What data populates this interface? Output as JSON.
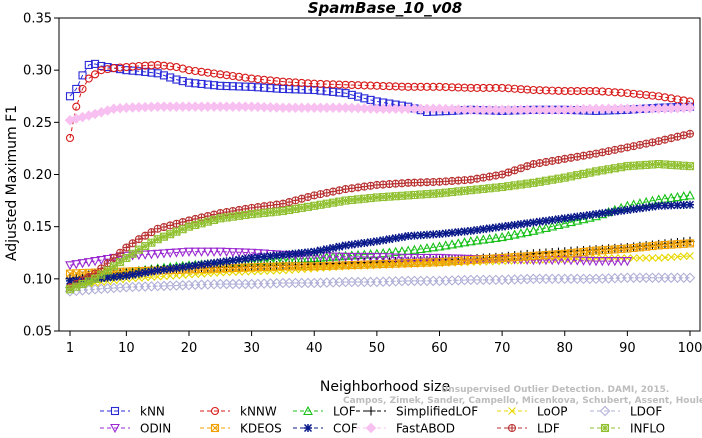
{
  "chart_data": {
    "type": "line",
    "title": "SpamBase_10_v08",
    "xlabel": "Neighborhood size",
    "ylabel": "Adjusted Maximum F1",
    "xlim": [
      1,
      100
    ],
    "ylim": [
      0.05,
      0.35
    ],
    "xticks": [
      "1",
      "10",
      "20",
      "30",
      "40",
      "50",
      "60",
      "70",
      "80",
      "90",
      "100"
    ],
    "yticks": [
      "0.05",
      "0.10",
      "0.15",
      "0.20",
      "0.25",
      "0.30",
      "0.35"
    ],
    "grid": false,
    "legend_placement": "bottom",
    "series": [
      {
        "name": "kNN",
        "color": "#2a2ad8",
        "marker": "square",
        "dash": "4,3",
        "points": [
          [
            1,
            0.275
          ],
          [
            2,
            0.282
          ],
          [
            3,
            0.295
          ],
          [
            4,
            0.305
          ],
          [
            5,
            0.306
          ],
          [
            6,
            0.304
          ],
          [
            8,
            0.302
          ],
          [
            10,
            0.3
          ],
          [
            12,
            0.299
          ],
          [
            15,
            0.297
          ],
          [
            18,
            0.291
          ],
          [
            20,
            0.288
          ],
          [
            25,
            0.285
          ],
          [
            30,
            0.284
          ],
          [
            35,
            0.282
          ],
          [
            40,
            0.281
          ],
          [
            45,
            0.278
          ],
          [
            48,
            0.273
          ],
          [
            50,
            0.27
          ],
          [
            55,
            0.265
          ],
          [
            58,
            0.26
          ],
          [
            62,
            0.261
          ],
          [
            65,
            0.262
          ],
          [
            70,
            0.261
          ],
          [
            75,
            0.262
          ],
          [
            80,
            0.262
          ],
          [
            85,
            0.261
          ],
          [
            90,
            0.262
          ],
          [
            95,
            0.264
          ],
          [
            100,
            0.265
          ]
        ]
      },
      {
        "name": "kNNW",
        "color": "#d81a1a",
        "marker": "circle",
        "dash": "4,3",
        "points": [
          [
            1,
            0.235
          ],
          [
            2,
            0.265
          ],
          [
            3,
            0.282
          ],
          [
            4,
            0.292
          ],
          [
            5,
            0.296
          ],
          [
            6,
            0.3
          ],
          [
            8,
            0.302
          ],
          [
            10,
            0.303
          ],
          [
            12,
            0.304
          ],
          [
            15,
            0.305
          ],
          [
            18,
            0.303
          ],
          [
            20,
            0.3
          ],
          [
            25,
            0.296
          ],
          [
            30,
            0.292
          ],
          [
            35,
            0.289
          ],
          [
            40,
            0.287
          ],
          [
            45,
            0.286
          ],
          [
            50,
            0.285
          ],
          [
            55,
            0.284
          ],
          [
            60,
            0.284
          ],
          [
            65,
            0.283
          ],
          [
            70,
            0.283
          ],
          [
            75,
            0.281
          ],
          [
            80,
            0.28
          ],
          [
            85,
            0.28
          ],
          [
            90,
            0.278
          ],
          [
            95,
            0.275
          ],
          [
            100,
            0.27
          ]
        ]
      },
      {
        "name": "LOF",
        "color": "#18c018",
        "marker": "triangle-up",
        "dash": "4,3",
        "points": [
          [
            1,
            0.095
          ],
          [
            5,
            0.1
          ],
          [
            10,
            0.106
          ],
          [
            15,
            0.11
          ],
          [
            20,
            0.113
          ],
          [
            25,
            0.115
          ],
          [
            30,
            0.117
          ],
          [
            35,
            0.118
          ],
          [
            40,
            0.12
          ],
          [
            45,
            0.122
          ],
          [
            50,
            0.124
          ],
          [
            55,
            0.127
          ],
          [
            60,
            0.131
          ],
          [
            65,
            0.136
          ],
          [
            70,
            0.14
          ],
          [
            75,
            0.146
          ],
          [
            80,
            0.153
          ],
          [
            85,
            0.16
          ],
          [
            90,
            0.17
          ],
          [
            95,
            0.176
          ],
          [
            100,
            0.18
          ]
        ]
      },
      {
        "name": "SimplifiedLOF",
        "color": "#000000",
        "marker": "plus",
        "dash": "4,3",
        "points": [
          [
            1,
            0.1
          ],
          [
            5,
            0.105
          ],
          [
            10,
            0.106
          ],
          [
            15,
            0.109
          ],
          [
            20,
            0.11
          ],
          [
            25,
            0.111
          ],
          [
            30,
            0.112
          ],
          [
            35,
            0.113
          ],
          [
            40,
            0.114
          ],
          [
            45,
            0.115
          ],
          [
            50,
            0.116
          ],
          [
            55,
            0.117
          ],
          [
            60,
            0.118
          ],
          [
            65,
            0.119
          ],
          [
            70,
            0.121
          ],
          [
            75,
            0.124
          ],
          [
            80,
            0.126
          ],
          [
            85,
            0.128
          ],
          [
            90,
            0.13
          ],
          [
            95,
            0.133
          ],
          [
            100,
            0.136
          ]
        ]
      },
      {
        "name": "LoOP",
        "color": "#e8d800",
        "marker": "x",
        "dash": "4,3",
        "points": [
          [
            1,
            0.092
          ],
          [
            5,
            0.096
          ],
          [
            10,
            0.1
          ],
          [
            15,
            0.102
          ],
          [
            20,
            0.104
          ],
          [
            25,
            0.106
          ],
          [
            30,
            0.107
          ],
          [
            35,
            0.108
          ],
          [
            40,
            0.11
          ],
          [
            45,
            0.112
          ],
          [
            50,
            0.113
          ],
          [
            55,
            0.114
          ],
          [
            60,
            0.115
          ],
          [
            65,
            0.116
          ],
          [
            70,
            0.117
          ],
          [
            75,
            0.118
          ],
          [
            80,
            0.119
          ],
          [
            85,
            0.12
          ],
          [
            90,
            0.12
          ],
          [
            95,
            0.12
          ],
          [
            100,
            0.122
          ]
        ]
      },
      {
        "name": "LDOF",
        "color": "#b0b0d8",
        "marker": "diamond",
        "dash": "4,3",
        "points": [
          [
            1,
            0.088
          ],
          [
            5,
            0.09
          ],
          [
            10,
            0.092
          ],
          [
            15,
            0.093
          ],
          [
            20,
            0.094
          ],
          [
            25,
            0.095
          ],
          [
            30,
            0.095
          ],
          [
            35,
            0.096
          ],
          [
            40,
            0.096
          ],
          [
            45,
            0.097
          ],
          [
            50,
            0.097
          ],
          [
            55,
            0.098
          ],
          [
            60,
            0.098
          ],
          [
            65,
            0.099
          ],
          [
            70,
            0.099
          ],
          [
            75,
            0.1
          ],
          [
            80,
            0.1
          ],
          [
            85,
            0.1
          ],
          [
            90,
            0.101
          ],
          [
            95,
            0.101
          ],
          [
            100,
            0.101
          ]
        ]
      },
      {
        "name": "ODIN",
        "color": "#9a2ad0",
        "marker": "triangle-down",
        "dash": "4,3",
        "points": [
          [
            1,
            0.113
          ],
          [
            3,
            0.115
          ],
          [
            5,
            0.117
          ],
          [
            8,
            0.12
          ],
          [
            10,
            0.122
          ],
          [
            15,
            0.124
          ],
          [
            20,
            0.126
          ],
          [
            25,
            0.126
          ],
          [
            30,
            0.125
          ],
          [
            35,
            0.123
          ],
          [
            40,
            0.122
          ],
          [
            45,
            0.121
          ],
          [
            50,
            0.121
          ],
          [
            55,
            0.12
          ],
          [
            60,
            0.12
          ],
          [
            65,
            0.119
          ],
          [
            70,
            0.119
          ],
          [
            75,
            0.118
          ],
          [
            80,
            0.118
          ],
          [
            85,
            0.117
          ],
          [
            90,
            0.117
          ]
        ]
      },
      {
        "name": "KDEOS",
        "color": "#f0a000",
        "marker": "square-x",
        "dash": "4,3",
        "points": [
          [
            1,
            0.105
          ],
          [
            5,
            0.106
          ],
          [
            10,
            0.107
          ],
          [
            15,
            0.108
          ],
          [
            20,
            0.109
          ],
          [
            25,
            0.11
          ],
          [
            30,
            0.111
          ],
          [
            35,
            0.112
          ],
          [
            40,
            0.112
          ],
          [
            45,
            0.113
          ],
          [
            50,
            0.114
          ],
          [
            55,
            0.115
          ],
          [
            60,
            0.116
          ],
          [
            65,
            0.118
          ],
          [
            70,
            0.12
          ],
          [
            75,
            0.122
          ],
          [
            80,
            0.124
          ],
          [
            85,
            0.127
          ],
          [
            90,
            0.129
          ],
          [
            95,
            0.132
          ],
          [
            100,
            0.134
          ]
        ]
      },
      {
        "name": "COF",
        "color": "#0a1a8a",
        "marker": "asterisk",
        "dash": "4,3",
        "points": [
          [
            1,
            0.098
          ],
          [
            5,
            0.1
          ],
          [
            10,
            0.103
          ],
          [
            15,
            0.108
          ],
          [
            20,
            0.112
          ],
          [
            25,
            0.116
          ],
          [
            30,
            0.12
          ],
          [
            35,
            0.123
          ],
          [
            40,
            0.126
          ],
          [
            45,
            0.132
          ],
          [
            50,
            0.136
          ],
          [
            55,
            0.141
          ],
          [
            60,
            0.143
          ],
          [
            65,
            0.146
          ],
          [
            70,
            0.15
          ],
          [
            75,
            0.154
          ],
          [
            80,
            0.158
          ],
          [
            85,
            0.162
          ],
          [
            90,
            0.166
          ],
          [
            95,
            0.17
          ],
          [
            100,
            0.171
          ]
        ]
      },
      {
        "name": "FastABOD",
        "color": "#f8c0f0",
        "marker": "diamond-filled",
        "dash": "4,3",
        "points": [
          [
            1,
            0.252
          ],
          [
            3,
            0.255
          ],
          [
            5,
            0.258
          ],
          [
            8,
            0.263
          ],
          [
            10,
            0.264
          ],
          [
            15,
            0.265
          ],
          [
            20,
            0.265
          ],
          [
            25,
            0.265
          ],
          [
            30,
            0.265
          ],
          [
            35,
            0.264
          ],
          [
            40,
            0.264
          ],
          [
            45,
            0.264
          ],
          [
            50,
            0.263
          ],
          [
            55,
            0.263
          ],
          [
            60,
            0.263
          ],
          [
            65,
            0.262
          ],
          [
            70,
            0.262
          ],
          [
            75,
            0.262
          ],
          [
            80,
            0.262
          ],
          [
            85,
            0.263
          ],
          [
            90,
            0.263
          ],
          [
            95,
            0.263
          ],
          [
            100,
            0.264
          ]
        ]
      },
      {
        "name": "LDF",
        "color": "#b83030",
        "marker": "circle-plus",
        "dash": "4,3",
        "points": [
          [
            1,
            0.092
          ],
          [
            5,
            0.105
          ],
          [
            8,
            0.12
          ],
          [
            10,
            0.13
          ],
          [
            12,
            0.138
          ],
          [
            15,
            0.148
          ],
          [
            20,
            0.156
          ],
          [
            25,
            0.163
          ],
          [
            30,
            0.168
          ],
          [
            35,
            0.172
          ],
          [
            40,
            0.18
          ],
          [
            45,
            0.186
          ],
          [
            50,
            0.19
          ],
          [
            55,
            0.192
          ],
          [
            60,
            0.193
          ],
          [
            65,
            0.195
          ],
          [
            70,
            0.2
          ],
          [
            75,
            0.21
          ],
          [
            80,
            0.215
          ],
          [
            85,
            0.22
          ],
          [
            90,
            0.226
          ],
          [
            95,
            0.232
          ],
          [
            100,
            0.239
          ]
        ]
      },
      {
        "name": "INFLO",
        "color": "#90c030",
        "marker": "square-star",
        "dash": "4,3",
        "points": [
          [
            1,
            0.09
          ],
          [
            5,
            0.1
          ],
          [
            8,
            0.112
          ],
          [
            10,
            0.12
          ],
          [
            12,
            0.128
          ],
          [
            15,
            0.138
          ],
          [
            20,
            0.15
          ],
          [
            25,
            0.158
          ],
          [
            30,
            0.162
          ],
          [
            35,
            0.165
          ],
          [
            40,
            0.17
          ],
          [
            45,
            0.175
          ],
          [
            50,
            0.178
          ],
          [
            55,
            0.18
          ],
          [
            60,
            0.182
          ],
          [
            65,
            0.185
          ],
          [
            70,
            0.188
          ],
          [
            75,
            0.192
          ],
          [
            80,
            0.197
          ],
          [
            85,
            0.203
          ],
          [
            90,
            0.208
          ],
          [
            95,
            0.21
          ],
          [
            100,
            0.208
          ]
        ]
      }
    ]
  },
  "watermark": {
    "line1": "Unsupervised Outlier Detection. DAMI, 2015.",
    "line2": "Campos, Zimek, Sander, Campello, Micenkova, Schubert, Assent, Houle"
  }
}
